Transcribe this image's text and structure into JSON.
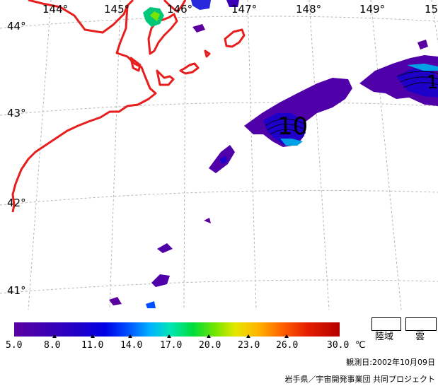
{
  "map": {
    "latitude_labels": [
      "44°",
      "43°",
      "42°",
      "41°"
    ],
    "longitude_labels": [
      "144°",
      "145°",
      "146°",
      "147°",
      "148°",
      "149°",
      "15"
    ],
    "contour_label": "10",
    "contour_label_right": "1",
    "colors": {
      "coastline": "#e61e1e",
      "grid": "#b4b4b4"
    }
  },
  "legend": {
    "tick_labels": [
      "5.0",
      "8.0",
      "11.0",
      "14.0",
      "17.0",
      "20.0",
      "23.0",
      "26.0",
      "30.0"
    ],
    "unit": "℃",
    "land_label": "陸域",
    "cloud_label": "雲"
  },
  "footer": {
    "observation_date": "観測日:2002年10月09日",
    "credit": "岩手県／宇宙開発事業団 共同プロジェクト"
  }
}
